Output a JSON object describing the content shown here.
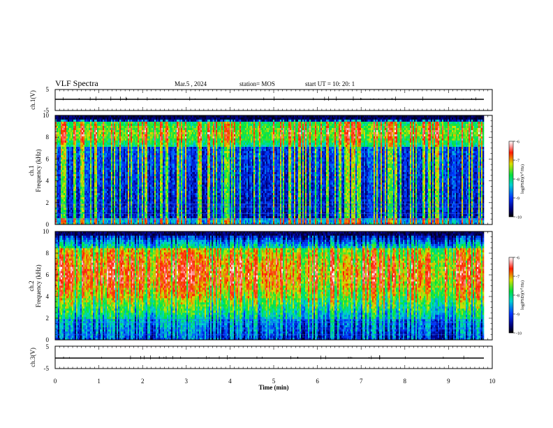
{
  "header": {
    "title": "VLF Spectra",
    "date": "Mar.5  , 2024",
    "station": "station= MOS",
    "start": "start  UT  =   10: 20: 1"
  },
  "chart_data": [
    {
      "type": "line",
      "panel": "ch1-waveform",
      "ylabel": "ch.1(V)",
      "ylim": [
        -5,
        5
      ],
      "yticks": [
        "5",
        "-5"
      ],
      "xlim": [
        0,
        10
      ],
      "series": [
        {
          "x": [
            0,
            9.82
          ],
          "y": [
            0,
            0
          ]
        }
      ]
    },
    {
      "type": "heatmap",
      "panel": "ch1-spectrogram",
      "ylabel": "ch.1\nFrequency (kHz)",
      "ylim": [
        0,
        10
      ],
      "yticks": [
        "0",
        "2",
        "4",
        "6",
        "8",
        "10"
      ],
      "xlim": [
        0,
        9.82
      ],
      "colorbar": {
        "label": "log(PSD)(V²/Hz)",
        "range": [
          -10,
          -6
        ],
        "ticks": [
          "-6",
          "-7",
          "-8",
          "-9",
          "-10"
        ]
      }
    },
    {
      "type": "heatmap",
      "panel": "ch2-spectrogram",
      "ylabel": "ch.2\nFrequency (kHz)",
      "ylim": [
        0,
        10
      ],
      "yticks": [
        "0",
        "2",
        "4",
        "6",
        "8",
        "10"
      ],
      "xlim": [
        0,
        9.82
      ],
      "colorbar": {
        "label": "log(PSD)(V²/Hz)",
        "range": [
          -10,
          -6
        ],
        "ticks": [
          "-6",
          "-7",
          "-8",
          "-9",
          "-10"
        ]
      }
    },
    {
      "type": "line",
      "panel": "ch3-waveform",
      "ylabel": "ch.3(V)",
      "ylim": [
        -5,
        5
      ],
      "yticks": [
        "5",
        "-5"
      ],
      "xlim": [
        0,
        10
      ],
      "series": [
        {
          "x": [
            0,
            9.82
          ],
          "y": [
            0,
            0
          ]
        }
      ],
      "xlabel": "Time  (min)",
      "xticks": [
        "0",
        "1",
        "2",
        "3",
        "4",
        "5",
        "6",
        "7",
        "8",
        "9",
        "10"
      ]
    }
  ],
  "colors": {
    "background": "#ffffff",
    "axis": "#000000"
  }
}
